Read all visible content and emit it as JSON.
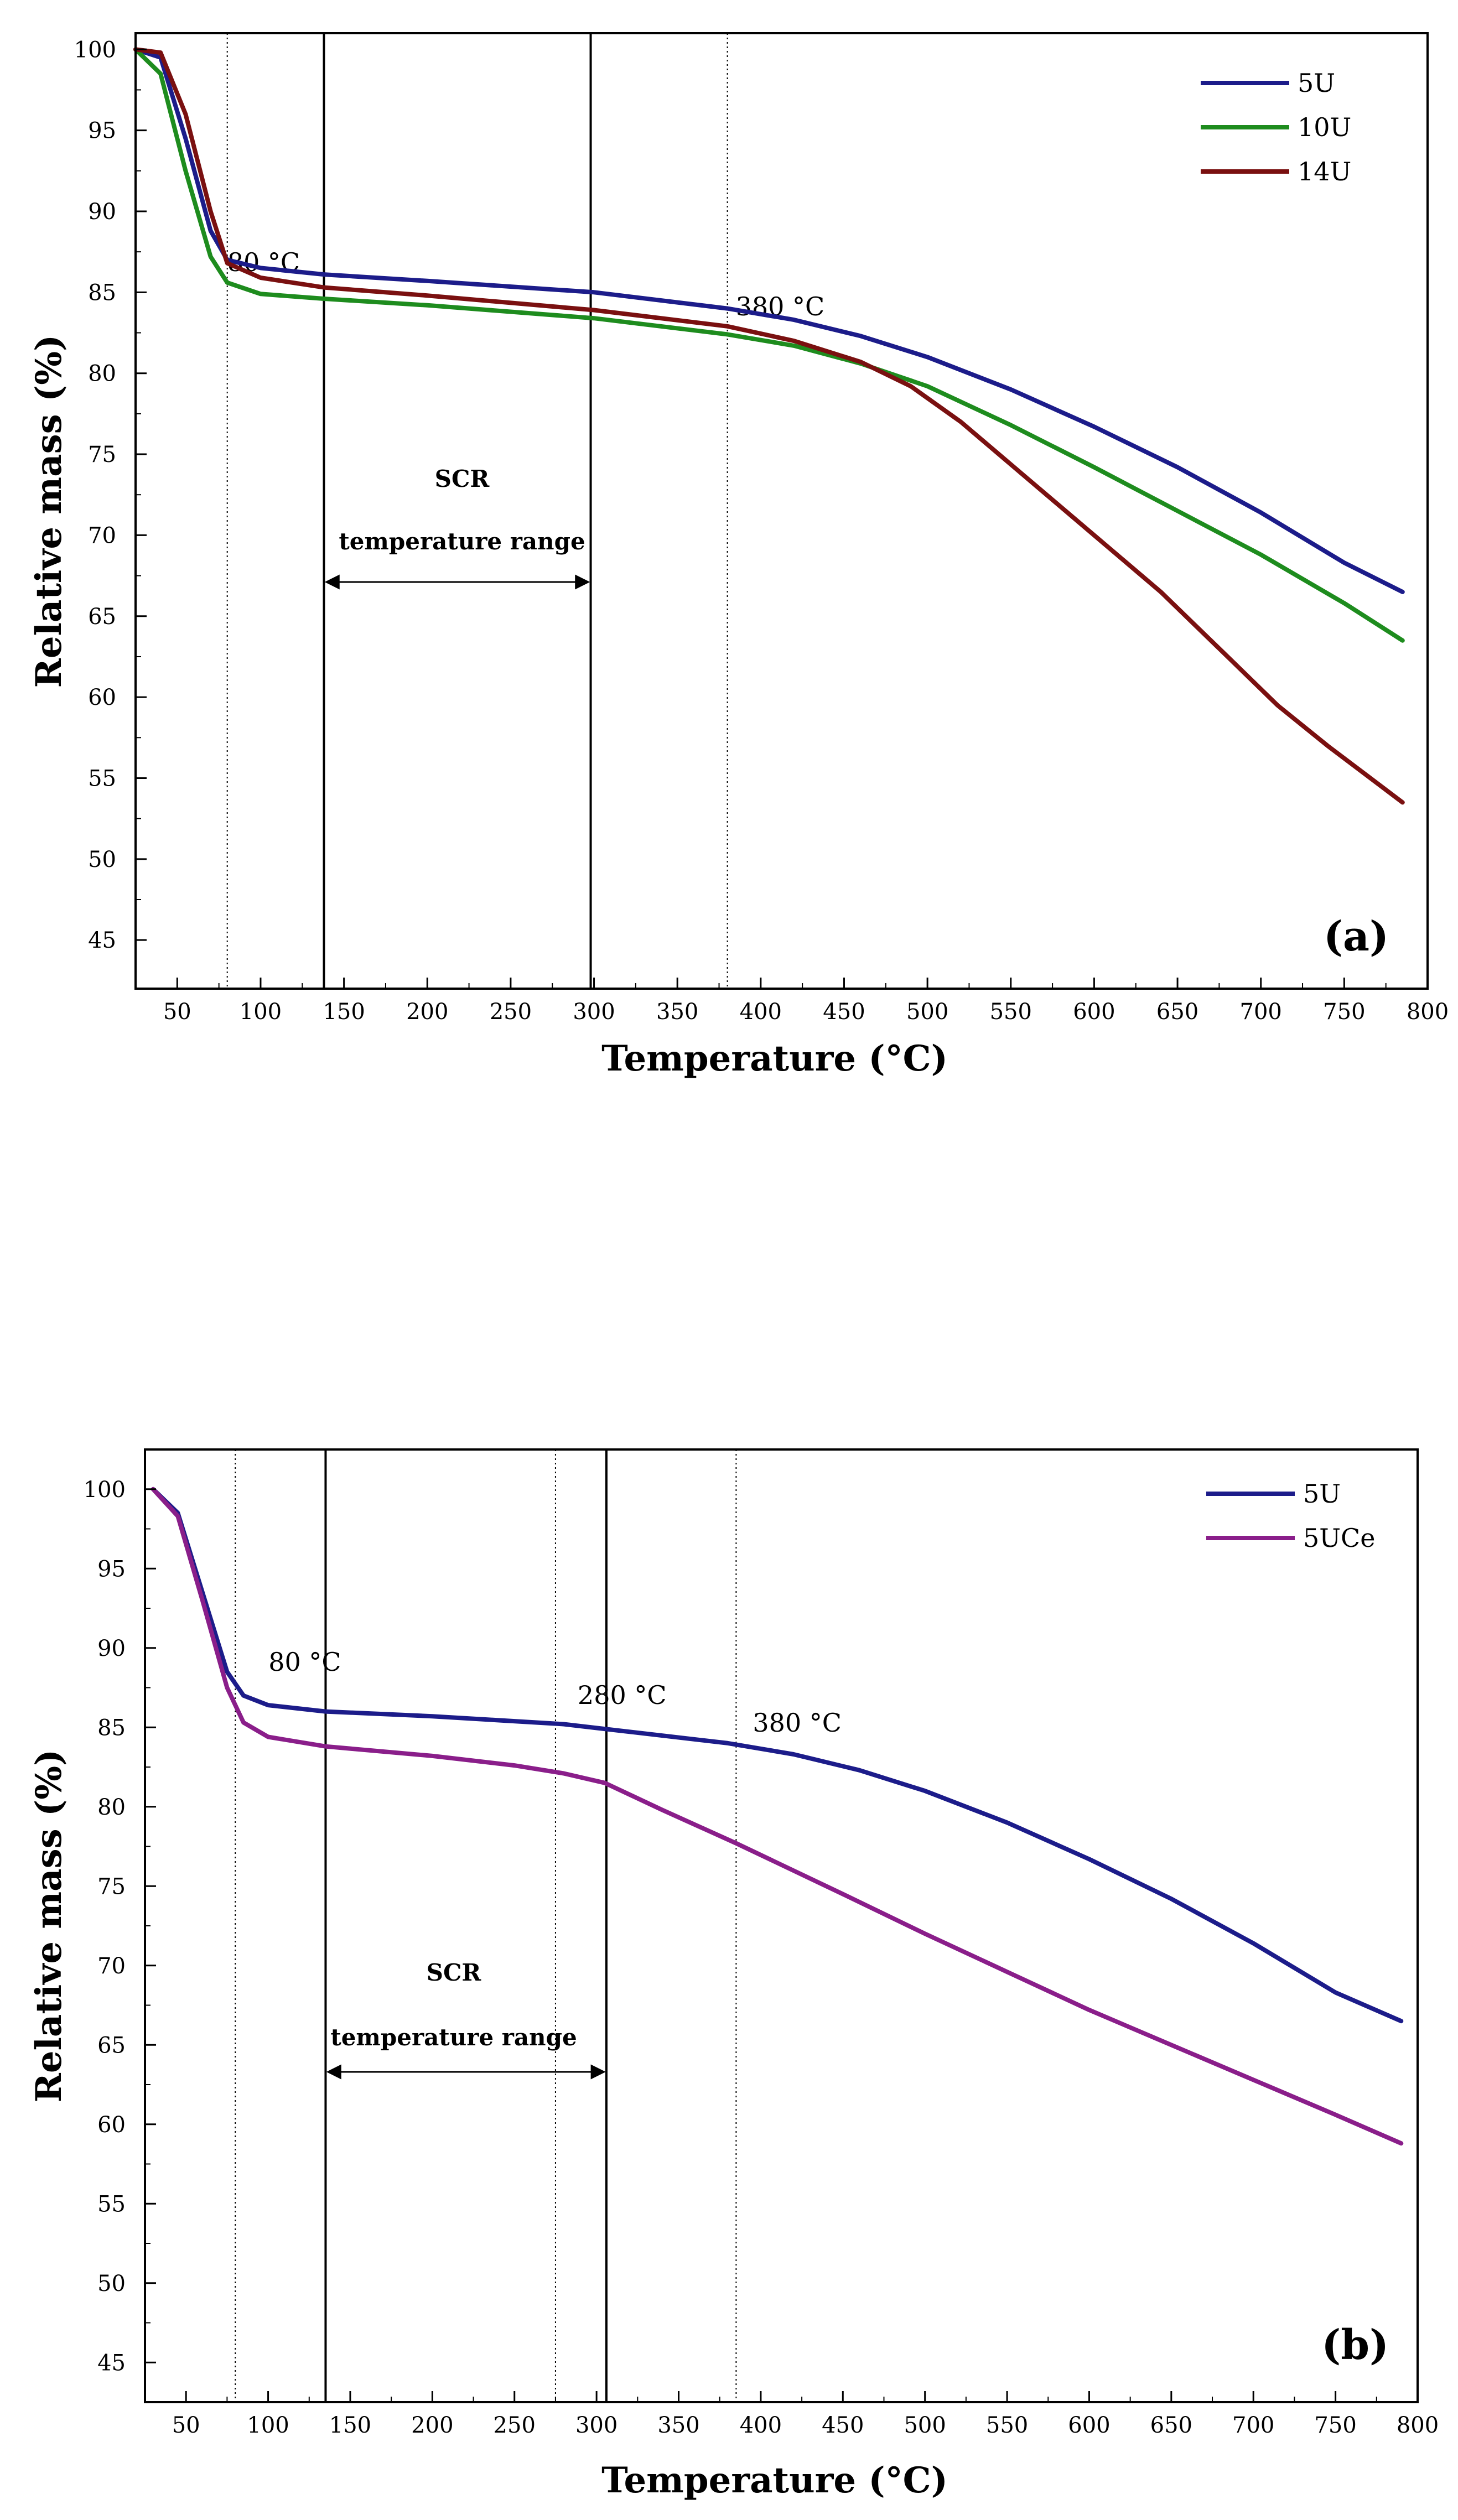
{
  "chart_data": [
    {
      "type": "line",
      "panel_label": "(a)",
      "xlabel": "Temperature (°C)",
      "ylabel": "Relative mass (%)",
      "xlim": [
        25,
        800
      ],
      "ylim": [
        42,
        101
      ],
      "xticks": [
        50,
        100,
        150,
        200,
        250,
        300,
        350,
        400,
        450,
        500,
        550,
        600,
        650,
        700,
        750,
        800
      ],
      "yticks": [
        45,
        50,
        55,
        60,
        65,
        70,
        75,
        80,
        85,
        90,
        95,
        100
      ],
      "legend_position": "top-right",
      "series": [
        {
          "name": "5U",
          "color": "#1c1c8a",
          "x": [
            25,
            40,
            55,
            70,
            80,
            100,
            138,
            200,
            300,
            380,
            420,
            460,
            500,
            550,
            600,
            650,
            700,
            750,
            785
          ],
          "y": [
            100,
            99.5,
            94.5,
            88.8,
            87,
            86.5,
            86.1,
            85.7,
            85,
            84,
            83.3,
            82.3,
            81,
            79,
            76.7,
            74.2,
            71.4,
            68.3,
            66.5
          ]
        },
        {
          "name": "10U",
          "color": "#1e8c1e",
          "x": [
            25,
            40,
            55,
            70,
            80,
            100,
            138,
            200,
            300,
            380,
            420,
            460,
            500,
            550,
            600,
            650,
            700,
            750,
            785
          ],
          "y": [
            100,
            98.5,
            92.5,
            87.2,
            85.6,
            84.9,
            84.6,
            84.2,
            83.4,
            82.4,
            81.7,
            80.6,
            79.2,
            76.8,
            74.2,
            71.5,
            68.8,
            65.8,
            63.5
          ]
        },
        {
          "name": "14U",
          "color": "#7a1010",
          "x": [
            25,
            40,
            55,
            70,
            80,
            100,
            138,
            200,
            300,
            380,
            420,
            460,
            490,
            520,
            560,
            600,
            640,
            680,
            710,
            740,
            785
          ],
          "y": [
            100,
            99.8,
            96,
            90,
            86.8,
            85.9,
            85.3,
            84.8,
            83.9,
            82.9,
            82,
            80.7,
            79.2,
            77,
            73.5,
            70,
            66.5,
            62.5,
            59.5,
            57,
            53.5
          ]
        }
      ],
      "vlines": [
        {
          "x": 80,
          "style": "dotted",
          "label": "80 °C"
        },
        {
          "x": 138,
          "style": "solid",
          "label": ""
        },
        {
          "x": 298,
          "style": "solid",
          "label": ""
        },
        {
          "x": 380,
          "style": "dotted",
          "label": "380 °C"
        }
      ],
      "annotations": {
        "scr": "SCR",
        "range": "temperature range"
      },
      "range_arrow": [
        138,
        298
      ]
    },
    {
      "type": "line",
      "panel_label": "(b)",
      "xlabel": "Temperature (°C)",
      "ylabel": "Relative mass (%)",
      "xlim": [
        25,
        800
      ],
      "ylim": [
        42.5,
        102.5
      ],
      "xticks": [
        50,
        100,
        150,
        200,
        250,
        300,
        350,
        400,
        450,
        500,
        550,
        600,
        650,
        700,
        750,
        800
      ],
      "yticks": [
        45,
        50,
        55,
        60,
        65,
        70,
        75,
        80,
        85,
        90,
        95,
        100
      ],
      "legend_position": "top-right",
      "series": [
        {
          "name": "5U",
          "color": "#1c1c8a",
          "x": [
            30,
            45,
            60,
            75,
            85,
            100,
            135,
            200,
            280,
            305,
            380,
            420,
            460,
            500,
            550,
            600,
            650,
            700,
            750,
            790
          ],
          "y": [
            100,
            98.5,
            93.5,
            88.5,
            87,
            86.4,
            86,
            85.7,
            85.2,
            84.9,
            84,
            83.3,
            82.3,
            81,
            79,
            76.7,
            74.2,
            71.4,
            68.3,
            66.5
          ]
        },
        {
          "name": "5UCe",
          "color": "#8a1e8a",
          "x": [
            30,
            45,
            60,
            75,
            85,
            100,
            135,
            200,
            250,
            280,
            305,
            340,
            385,
            450,
            500,
            550,
            600,
            650,
            700,
            750,
            790
          ],
          "y": [
            100,
            98.3,
            93,
            87.5,
            85.3,
            84.4,
            83.8,
            83.2,
            82.6,
            82.1,
            81.5,
            79.8,
            77.7,
            74.5,
            72,
            69.6,
            67.2,
            65,
            62.8,
            60.6,
            58.8
          ]
        }
      ],
      "vlines": [
        {
          "x": 80,
          "style": "dotted",
          "label": "80 °C"
        },
        {
          "x": 135,
          "style": "solid",
          "label": ""
        },
        {
          "x": 275,
          "style": "dotted",
          "label": "280 °C"
        },
        {
          "x": 306,
          "style": "solid",
          "label": ""
        },
        {
          "x": 385,
          "style": "dotted",
          "label": "380 °C"
        }
      ],
      "annotations": {
        "scr": "SCR",
        "range": "temperature range"
      },
      "range_arrow": [
        135,
        306
      ]
    }
  ]
}
